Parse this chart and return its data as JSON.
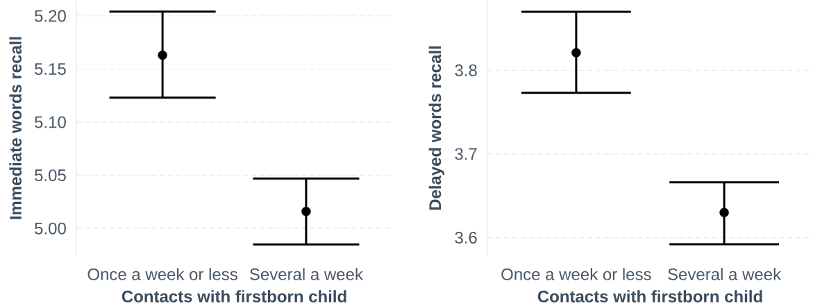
{
  "chart_data": [
    {
      "type": "scatter",
      "xlabel": "Contacts with firstborn child",
      "ylabel": "Immediate words recall",
      "categories": [
        "Once a week or less",
        "Several a week"
      ],
      "values": [
        5.163,
        5.016
      ],
      "errors": [
        [
          5.123,
          5.204
        ],
        [
          4.985,
          5.047
        ]
      ],
      "color": "#000000",
      "marker": "circle",
      "grid": "y",
      "ylim": [
        4.974,
        5.215
      ],
      "yticks": [
        {
          "value": 5.0,
          "label": "5.00"
        },
        {
          "value": 5.05,
          "label": "5.05"
        },
        {
          "value": 5.1,
          "label": "5.10"
        },
        {
          "value": 5.15,
          "label": "5.15"
        },
        {
          "value": 5.2,
          "label": "5.20"
        }
      ]
    },
    {
      "type": "scatter",
      "xlabel": "Contacts with firstborn child",
      "ylabel": "Delayed words recall",
      "categories": [
        "Once a week or less",
        "Several a week"
      ],
      "values": [
        3.821,
        3.63
      ],
      "errors": [
        [
          3.773,
          3.87
        ],
        [
          3.592,
          3.666
        ]
      ],
      "color": "#000000",
      "marker": "circle",
      "grid": "y",
      "ylim": [
        3.578,
        3.884
      ],
      "yticks": [
        3.6,
        3.7,
        3.8
      ]
    }
  ]
}
